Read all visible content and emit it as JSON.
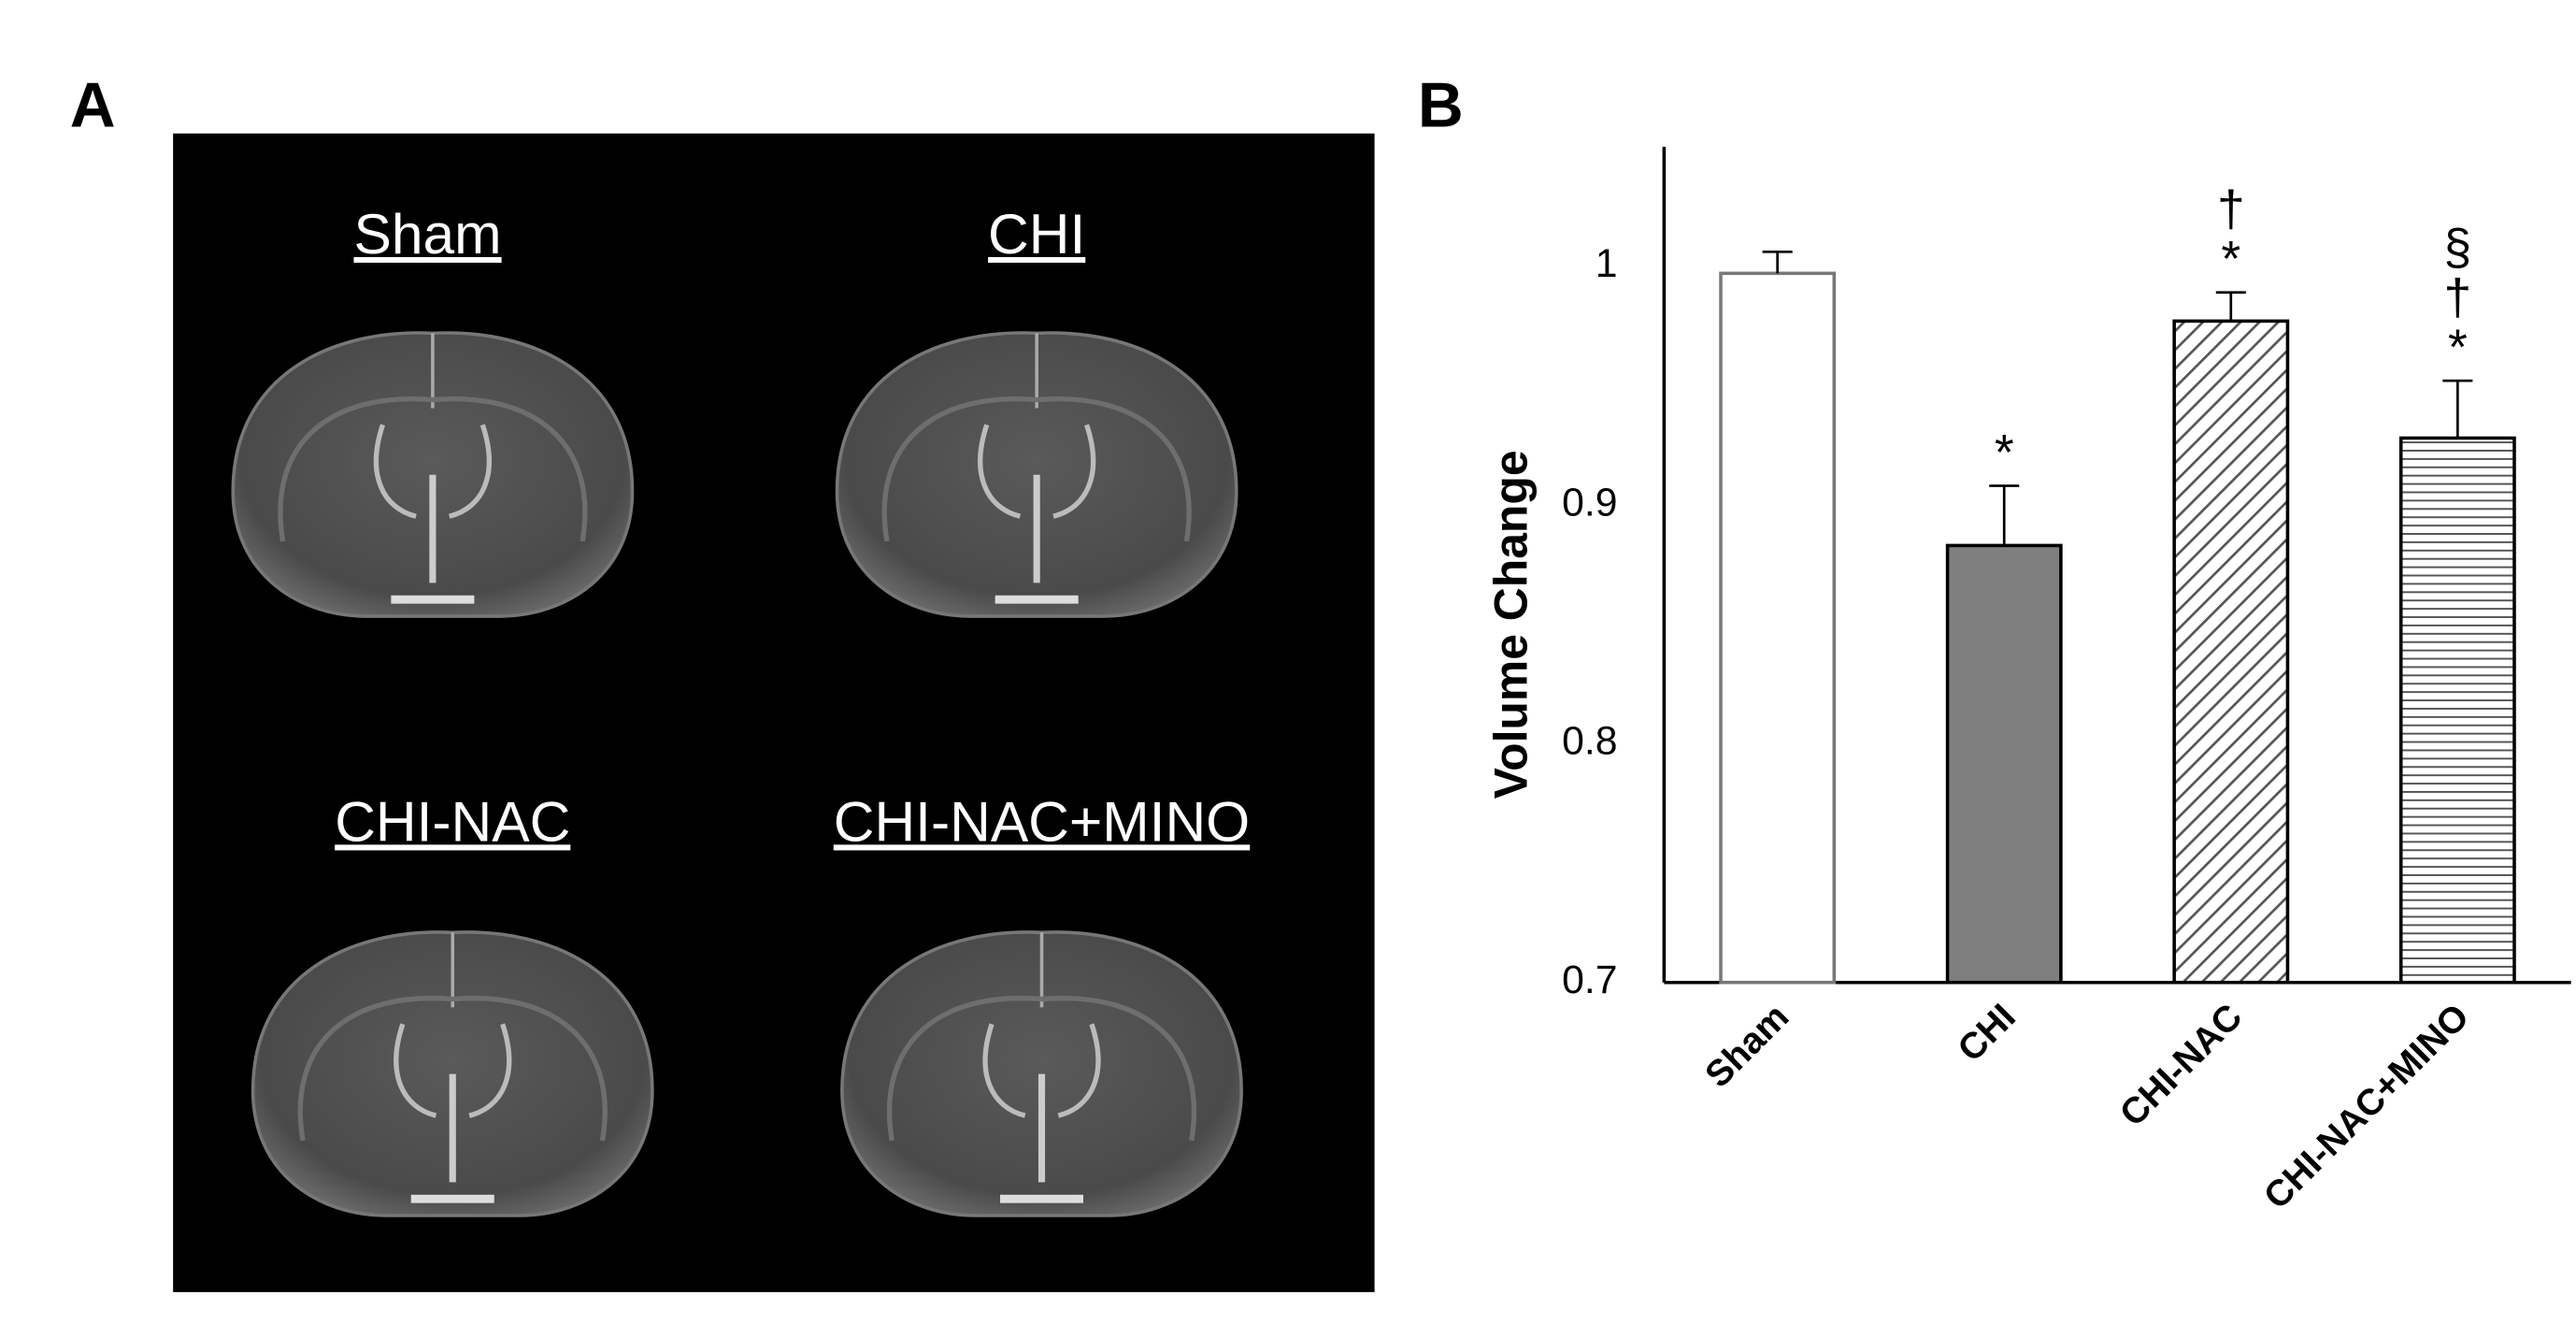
{
  "panel_labels": [
    "A",
    "B"
  ],
  "panel_a": {
    "labels": [
      "Sham",
      "CHI",
      "CHI-NAC",
      "CHI-NAC+MINO"
    ]
  },
  "chart_data": {
    "type": "bar",
    "y_label": "Volume Change",
    "categories": [
      "Sham",
      "CHI",
      "CHI-NAC",
      "CHI-NAC+MINO"
    ],
    "values": [
      0.997,
      0.883,
      0.977,
      0.928
    ],
    "errors": [
      0.009,
      0.025,
      0.012,
      0.024
    ],
    "colors": [
      "#ffffff",
      "#7f7f7f",
      "#ffffff",
      "#ffffff"
    ],
    "hatch": [
      null,
      null,
      "diagonal",
      "horizontal"
    ],
    "annotations": [
      [],
      [
        "*"
      ],
      [
        "†",
        "*"
      ],
      [
        "§",
        "†",
        "*"
      ]
    ],
    "ylim": [
      0.7,
      1.05
    ],
    "yticks": [
      0.7,
      0.8,
      0.9,
      1
    ],
    "grid": false
  }
}
